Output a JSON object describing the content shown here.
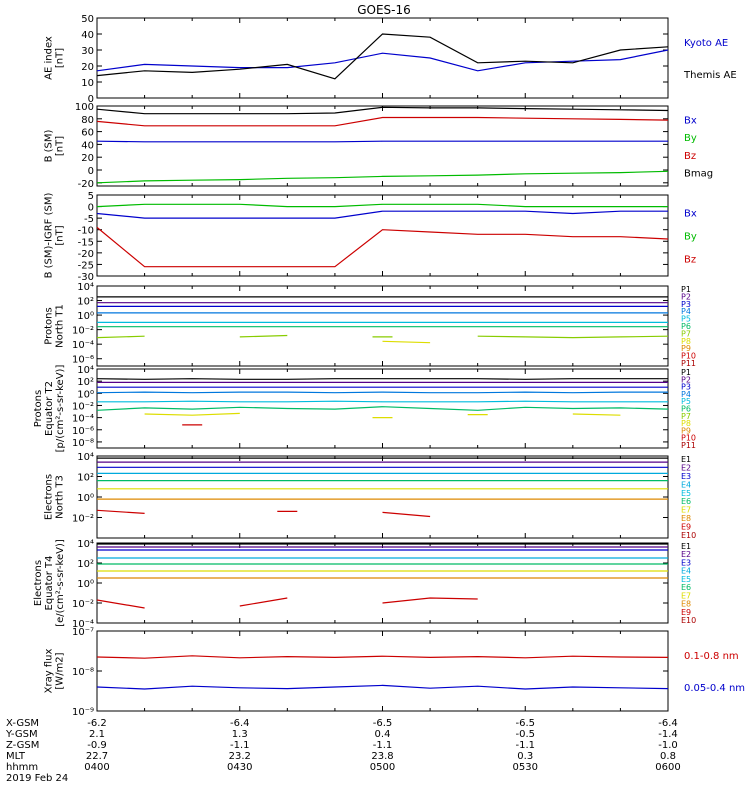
{
  "title": "GOES-16",
  "chart_data": [
    {
      "type": "line",
      "ylabel": [
        "AE index",
        "[nT]"
      ],
      "ylim": [
        0,
        50
      ],
      "yticks": [
        "0",
        "10",
        "20",
        "30",
        "40",
        "50"
      ],
      "x": [
        "0400",
        "0410",
        "0420",
        "0430",
        "0440",
        "0450",
        "0500",
        "0510",
        "0520",
        "0530",
        "0540",
        "0550",
        "0600"
      ],
      "series": [
        {
          "name": "Kyoto AE",
          "color": "#0000cc",
          "values": [
            17,
            21,
            20,
            19,
            19,
            22,
            28,
            25,
            17,
            22,
            23,
            24,
            30
          ]
        },
        {
          "name": "Themis AE",
          "color": "#000000",
          "values": [
            14,
            17,
            16,
            18,
            21,
            12,
            40,
            38,
            22,
            23,
            22,
            30,
            32
          ]
        }
      ]
    },
    {
      "type": "line",
      "ylabel": [
        "B (SM)",
        "[nT]"
      ],
      "ylim": [
        -25,
        100
      ],
      "yticks": [
        "-20",
        "0",
        "20",
        "40",
        "60",
        "80",
        "100"
      ],
      "series": [
        {
          "name": "Bx",
          "color": "#0000cc",
          "values": [
            45,
            44,
            44,
            44,
            44,
            44,
            45,
            45,
            45,
            45,
            45,
            45,
            45
          ]
        },
        {
          "name": "By",
          "color": "#00bb00",
          "values": [
            -20,
            -17,
            -16,
            -15,
            -13,
            -12,
            -10,
            -9,
            -8,
            -6,
            -5,
            -4,
            -2
          ]
        },
        {
          "name": "Bz",
          "color": "#cc0000",
          "values": [
            76,
            69,
            69,
            69,
            69,
            69,
            82,
            82,
            82,
            81,
            80,
            79,
            78
          ]
        },
        {
          "name": "Bmag",
          "color": "#000000",
          "values": [
            95,
            88,
            88,
            88,
            88,
            89,
            98,
            97,
            97,
            96,
            95,
            94,
            93
          ]
        }
      ]
    },
    {
      "type": "line",
      "ylabel": [
        "B (SM)-IGRF (SM)",
        "[nT]"
      ],
      "ylim": [
        -30,
        5
      ],
      "yticks": [
        "-30",
        "-25",
        "-20",
        "-15",
        "-10",
        "-5",
        "0",
        "5"
      ],
      "series": [
        {
          "name": "Bx",
          "color": "#0000cc",
          "values": [
            -3,
            -5,
            -5,
            -5,
            -5,
            -5,
            -2,
            -2,
            -2,
            -2,
            -3,
            -2,
            -2
          ]
        },
        {
          "name": "By",
          "color": "#00bb00",
          "values": [
            0,
            1,
            1,
            1,
            0,
            0,
            1,
            1,
            1,
            0,
            0,
            0,
            0
          ]
        },
        {
          "name": "Bz",
          "color": "#cc0000",
          "values": [
            -9,
            -26,
            -26,
            -26,
            -26,
            -26,
            -10,
            -11,
            -12,
            -12,
            -13,
            -13,
            -14
          ]
        }
      ]
    },
    {
      "type": "line",
      "ylabel": [
        "Protons",
        "North T1"
      ],
      "log": true,
      "ylim": [
        -7,
        4
      ],
      "yticks": [
        "10⁴",
        "10²",
        "10⁰",
        "10⁻²",
        "10⁻⁴",
        "10⁻⁶"
      ],
      "series": [
        {
          "name": "P1",
          "color": "#000000",
          "values": [
            2.5,
            2.5,
            2.5,
            2.5,
            2.5,
            2.5,
            2.5,
            2.5,
            2.5,
            2.5,
            2.5,
            2.5,
            2.5
          ]
        },
        {
          "name": "P2",
          "color": "#550088",
          "values": [
            1.7,
            1.7,
            1.7,
            1.7,
            1.7,
            1.7,
            1.7,
            1.7,
            1.7,
            1.7,
            1.7,
            1.7,
            1.7
          ]
        },
        {
          "name": "P3",
          "color": "#0000cc",
          "values": [
            1.2,
            1.2,
            1.2,
            1.2,
            1.2,
            1.2,
            1.2,
            1.2,
            1.2,
            1.2,
            1.2,
            1.2,
            1.2
          ]
        },
        {
          "name": "P4",
          "color": "#0077dd",
          "values": [
            0.3,
            0.3,
            0.3,
            0.3,
            0.3,
            0.3,
            0.3,
            0.3,
            0.3,
            0.3,
            0.3,
            0.3,
            0.3
          ]
        },
        {
          "name": "P5",
          "color": "#00bbdd",
          "values": [
            -1,
            -1,
            -1,
            -1,
            -1,
            -1,
            -1,
            -1,
            -1,
            -1,
            -1,
            -1,
            -1
          ]
        },
        {
          "name": "P6",
          "color": "#00bb66",
          "values": [
            -1.6,
            -1.6,
            -1.6,
            -1.6,
            -1.6,
            -1.6,
            -1.6,
            -1.6,
            -1.6,
            -1.6,
            -1.6,
            -1.6,
            -1.6
          ]
        },
        {
          "name": "P7",
          "color": "#88cc00",
          "values": [
            -3.1,
            -2.9,
            null,
            -3.0,
            -2.8,
            null,
            -3.0,
            null,
            -2.9,
            -3.0,
            -3.1,
            -3.0,
            -2.9
          ]
        },
        {
          "name": "P8",
          "color": "#dddd00",
          "values": [
            null,
            null,
            null,
            null,
            null,
            null,
            -3.6,
            -3.8,
            null,
            null,
            null,
            null,
            null
          ]
        }
      ],
      "legend": [
        "P1",
        "P2",
        "P3",
        "P4",
        "P5",
        "P6",
        "P7",
        "P8",
        "P9",
        "P10",
        "P11"
      ]
    },
    {
      "type": "line",
      "ylabel": [
        "Protons",
        "Equator T2",
        "[p/(cm²-s-sr-keV)]"
      ],
      "log": true,
      "ylim": [
        -9,
        4
      ],
      "yticks": [
        "10⁴",
        "10²",
        "10⁰",
        "10⁻²",
        "10⁻⁴",
        "10⁻⁶",
        "10⁻⁸"
      ],
      "series": [
        {
          "name": "P1",
          "color": "#000000",
          "values": [
            2.4,
            2.3,
            2.4,
            2.3,
            2.3,
            2.4,
            2.4,
            2.4,
            2.4,
            2.3,
            2.4,
            2.4,
            2.4
          ]
        },
        {
          "name": "P2",
          "color": "#550088",
          "values": [
            1.8,
            1.8,
            1.8,
            1.8,
            1.8,
            1.8,
            1.8,
            1.8,
            1.8,
            1.8,
            1.8,
            1.8,
            1.8
          ]
        },
        {
          "name": "P3",
          "color": "#0000cc",
          "values": [
            1.0,
            1.0,
            1.0,
            1.0,
            1.0,
            1.0,
            1.0,
            1.0,
            1.0,
            1.0,
            1.0,
            1.0,
            1.0
          ]
        },
        {
          "name": "P4",
          "color": "#0077dd",
          "values": [
            0.1,
            0.2,
            0.1,
            0.2,
            0.2,
            0.1,
            0.2,
            0.1,
            0.1,
            0.2,
            0.1,
            0.2,
            0.2
          ]
        },
        {
          "name": "P5",
          "color": "#00bbdd",
          "values": [
            -1.4,
            -1.4,
            -1.3,
            -1.4,
            -1.4,
            -1.3,
            -1.4,
            -1.4,
            -1.4,
            -1.3,
            -1.4,
            -1.4,
            -1.4
          ]
        },
        {
          "name": "P6",
          "color": "#00bb66",
          "values": [
            -2.8,
            -2.4,
            -2.6,
            -2.3,
            -2.5,
            -2.6,
            -2.2,
            -2.5,
            -2.8,
            -2.3,
            -2.5,
            -2.4,
            -2.6
          ]
        },
        {
          "name": "P7",
          "color": "#dddd00",
          "values": [
            null,
            -3.4,
            -3.6,
            -3.3,
            null,
            null,
            -4.0,
            null,
            -3.5,
            null,
            -3.4,
            -3.6,
            null
          ]
        },
        {
          "name": "P10",
          "color": "#cc0000",
          "values": [
            null,
            null,
            -5.2,
            null,
            null,
            null,
            null,
            null,
            null,
            null,
            null,
            null,
            null
          ]
        }
      ],
      "legend": [
        "P1",
        "P2",
        "P3",
        "P4",
        "P5",
        "P6",
        "P7",
        "P8",
        "P9",
        "P10",
        "P11"
      ]
    },
    {
      "type": "line",
      "ylabel": [
        "Electrons",
        "North T3"
      ],
      "log": true,
      "ylim": [
        -4,
        4
      ],
      "yticks": [
        "10⁴",
        "10²",
        "10⁰",
        "10⁻²"
      ],
      "series": [
        {
          "name": "E1",
          "color": "#000000",
          "values": [
            3.8,
            3.8,
            3.8,
            3.8,
            3.8,
            3.8,
            3.8,
            3.8,
            3.8,
            3.8,
            3.8,
            3.8,
            3.8
          ]
        },
        {
          "name": "E2",
          "color": "#550088",
          "values": [
            3.4,
            3.4,
            3.4,
            3.4,
            3.4,
            3.4,
            3.4,
            3.4,
            3.4,
            3.4,
            3.4,
            3.4,
            3.4
          ]
        },
        {
          "name": "E3",
          "color": "#0000cc",
          "values": [
            2.9,
            2.9,
            2.9,
            2.9,
            2.9,
            2.9,
            2.9,
            2.9,
            2.9,
            2.9,
            2.9,
            2.9,
            2.9
          ]
        },
        {
          "name": "E4",
          "color": "#00aadd",
          "values": [
            2.3,
            2.3,
            2.3,
            2.3,
            2.3,
            2.3,
            2.3,
            2.3,
            2.3,
            2.3,
            2.3,
            2.3,
            2.3
          ]
        },
        {
          "name": "E5",
          "color": "#00bb66",
          "values": [
            1.6,
            1.6,
            1.6,
            1.6,
            1.6,
            1.6,
            1.6,
            1.6,
            1.6,
            1.6,
            1.6,
            1.6,
            1.6
          ]
        },
        {
          "name": "E6",
          "color": "#dddd00",
          "values": [
            0.8,
            0.8,
            0.8,
            0.8,
            0.8,
            0.8,
            0.8,
            0.8,
            0.8,
            0.8,
            0.8,
            0.8,
            0.8
          ]
        },
        {
          "name": "E7",
          "color": "#dd8800",
          "values": [
            -0.2,
            -0.2,
            -0.2,
            -0.2,
            -0.2,
            -0.2,
            -0.2,
            -0.2,
            -0.2,
            -0.2,
            -0.2,
            -0.2,
            -0.2
          ]
        },
        {
          "name": "E9",
          "color": "#cc0000",
          "values": [
            -1.3,
            -1.6,
            null,
            null,
            -1.4,
            null,
            -1.5,
            -1.9,
            null,
            null,
            null,
            null,
            null
          ]
        }
      ],
      "legend": [
        "E1",
        "E2",
        "E3",
        "E4",
        "E5",
        "E6",
        "E7",
        "E8",
        "E9",
        "E10"
      ]
    },
    {
      "type": "line",
      "ylabel": [
        "Electrons",
        "Equator T4",
        "[e/(cm²-s-sr-keV)]"
      ],
      "log": true,
      "ylim": [
        -4,
        4
      ],
      "yticks": [
        "10⁴",
        "10²",
        "10⁰",
        "10⁻²",
        "10⁻⁴"
      ],
      "series": [
        {
          "name": "E1",
          "color": "#000000",
          "values": [
            3.9,
            3.9,
            3.9,
            3.9,
            3.9,
            3.9,
            3.9,
            3.9,
            3.9,
            3.9,
            3.9,
            3.9,
            3.9
          ]
        },
        {
          "name": "E2",
          "color": "#550088",
          "values": [
            3.6,
            3.6,
            3.6,
            3.6,
            3.6,
            3.6,
            3.6,
            3.6,
            3.6,
            3.6,
            3.6,
            3.6,
            3.6
          ]
        },
        {
          "name": "E3",
          "color": "#0000cc",
          "values": [
            3.3,
            3.3,
            3.3,
            3.3,
            3.3,
            3.3,
            3.3,
            3.3,
            3.3,
            3.3,
            3.3,
            3.3,
            3.3
          ]
        },
        {
          "name": "E4",
          "color": "#00aadd",
          "values": [
            2.5,
            2.5,
            2.5,
            2.5,
            2.5,
            2.5,
            2.5,
            2.5,
            2.5,
            2.5,
            2.5,
            2.5,
            2.5
          ]
        },
        {
          "name": "E5",
          "color": "#00bb66",
          "values": [
            1.9,
            1.9,
            1.9,
            1.9,
            1.9,
            1.9,
            1.9,
            1.9,
            1.9,
            1.9,
            1.9,
            1.9,
            1.9
          ]
        },
        {
          "name": "E6",
          "color": "#dddd00",
          "values": [
            1.2,
            1.2,
            1.2,
            1.2,
            1.2,
            1.2,
            1.2,
            1.2,
            1.2,
            1.2,
            1.2,
            1.2,
            1.2
          ]
        },
        {
          "name": "E7",
          "color": "#dd8800",
          "values": [
            0.5,
            0.5,
            0.5,
            0.5,
            0.5,
            0.5,
            0.5,
            0.5,
            0.5,
            0.5,
            0.5,
            0.5,
            0.5
          ]
        },
        {
          "name": "E9",
          "color": "#cc0000",
          "values": [
            -1.7,
            -2.5,
            null,
            -2.3,
            -1.5,
            null,
            -2.0,
            -1.5,
            -1.6,
            null,
            null,
            null,
            null
          ]
        }
      ],
      "legend": [
        "E1",
        "E2",
        "E3",
        "E4",
        "E5",
        "E6",
        "E7",
        "E8",
        "E9",
        "E10"
      ]
    },
    {
      "type": "line",
      "ylabel": [
        "Xray flux",
        "[W/m2]"
      ],
      "log": true,
      "ylim": [
        -9,
        -7
      ],
      "yticks": [
        "10⁻⁷",
        "10⁻⁸",
        "10⁻⁹"
      ],
      "series": [
        {
          "name": "0.1-0.8 nm",
          "color": "#cc0000",
          "values": [
            -7.65,
            -7.68,
            -7.62,
            -7.67,
            -7.64,
            -7.66,
            -7.63,
            -7.66,
            -7.64,
            -7.67,
            -7.63,
            -7.65,
            -7.66
          ]
        },
        {
          "name": "0.05-0.4 nm",
          "color": "#0000cc",
          "values": [
            -8.4,
            -8.45,
            -8.38,
            -8.42,
            -8.44,
            -8.4,
            -8.36,
            -8.43,
            -8.38,
            -8.45,
            -8.4,
            -8.42,
            -8.44
          ]
        }
      ]
    }
  ],
  "ephemeris": {
    "labels": [
      "X-GSM",
      "Y-GSM",
      "Z-GSM",
      "MLT",
      "hhmm"
    ],
    "date": "2019 Feb 24",
    "columns": [
      [
        "-6.2",
        "2.1",
        "-0.9",
        "22.7",
        "0400"
      ],
      [
        "-6.4",
        "1.3",
        "-1.1",
        "23.2",
        "0430"
      ],
      [
        "-6.5",
        "0.4",
        "-1.1",
        "23.8",
        "0500"
      ],
      [
        "-6.5",
        "-0.5",
        "-1.1",
        "0.3",
        "0530"
      ],
      [
        "-6.4",
        "-1.4",
        "-1.0",
        "0.8",
        "0600"
      ]
    ]
  }
}
